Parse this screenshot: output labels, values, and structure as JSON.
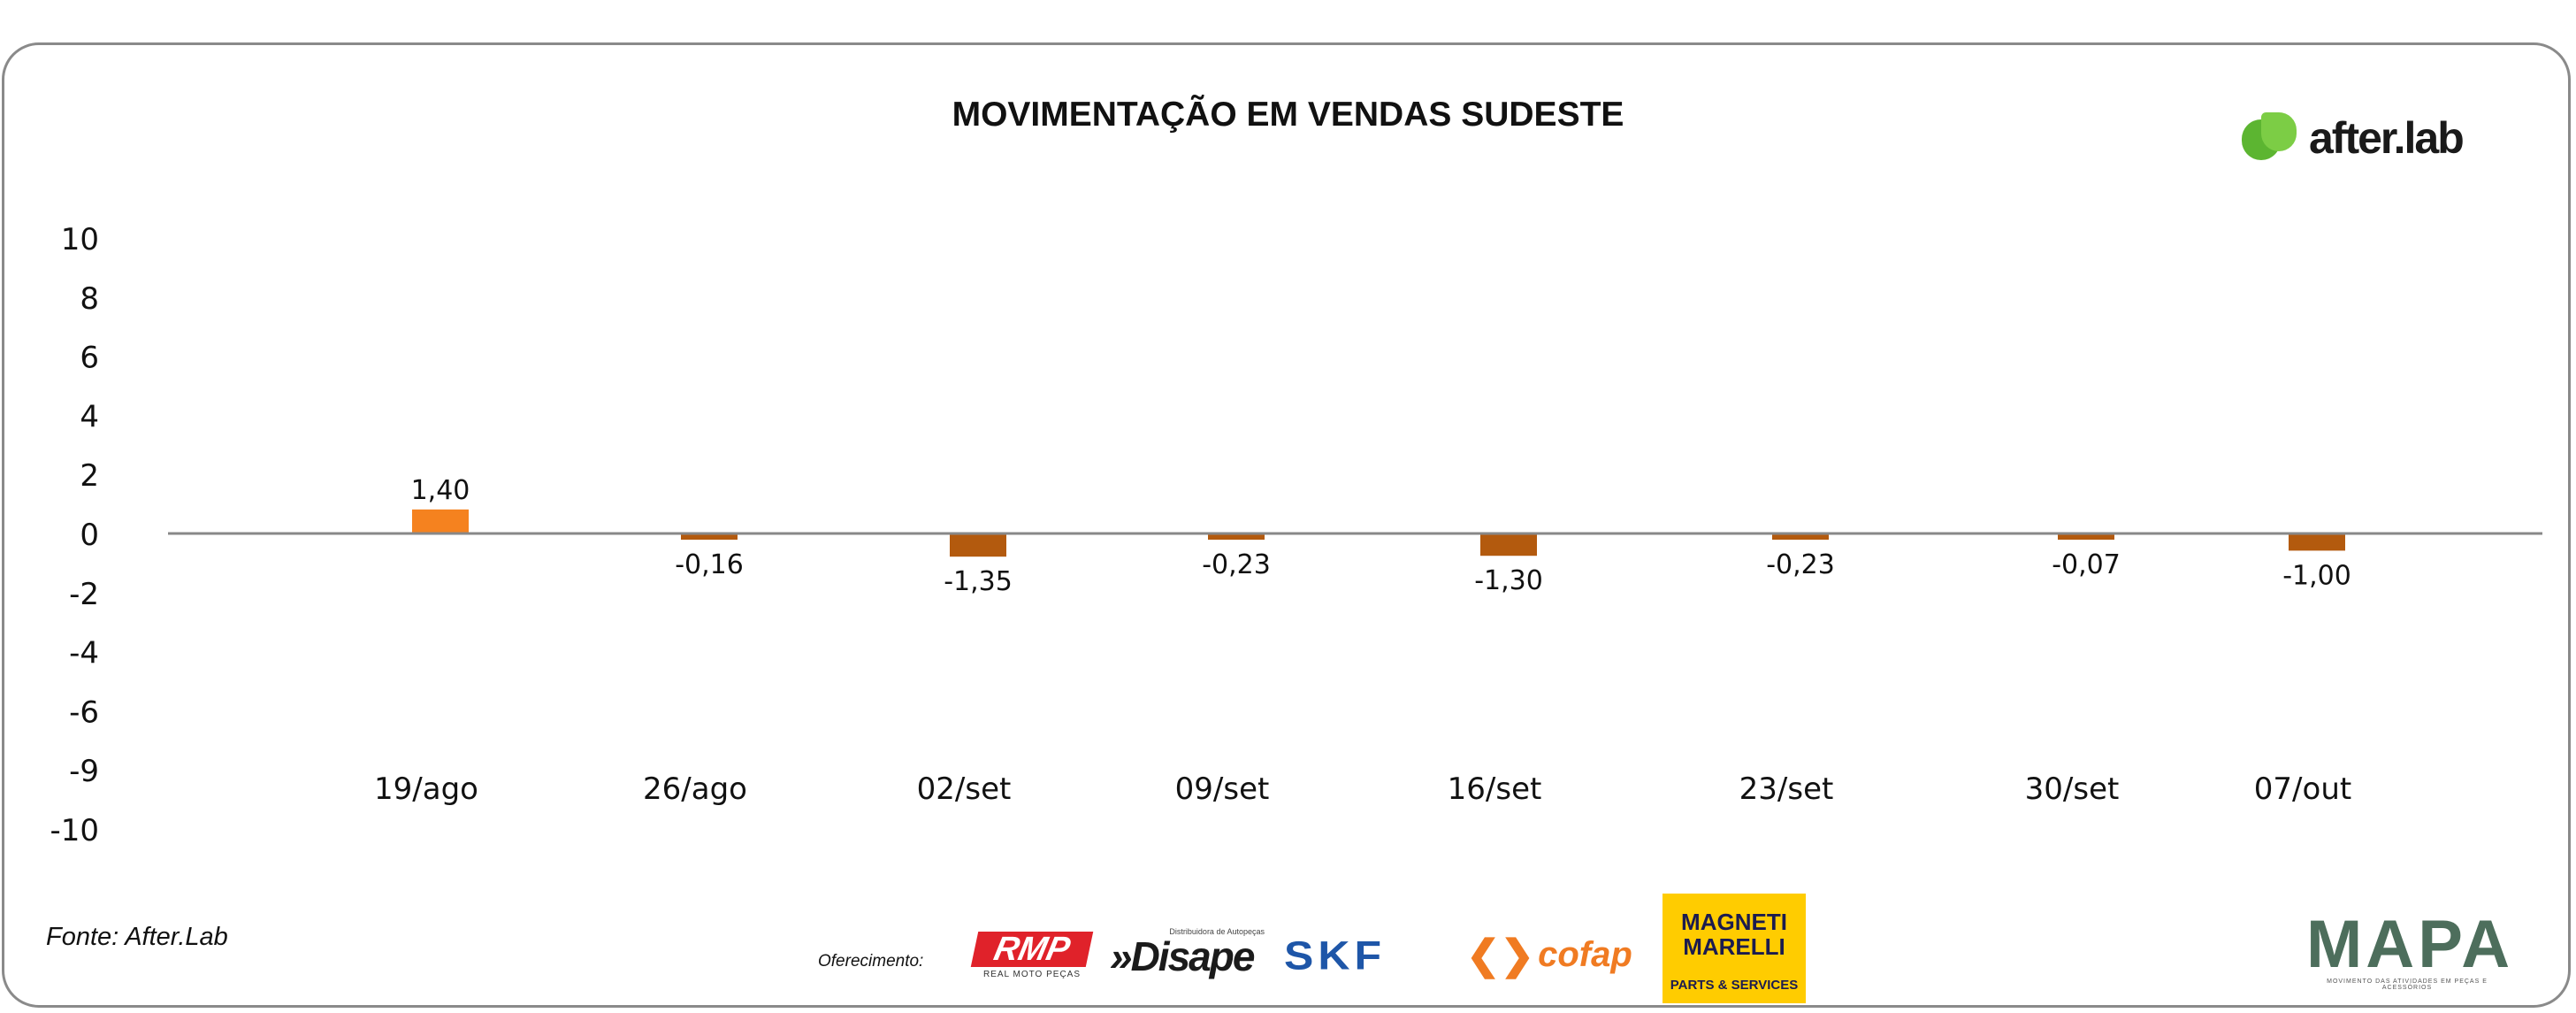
{
  "chart_data": {
    "type": "bar",
    "title": "MOVIMENTAÇÃO EM VENDAS SUDESTE",
    "categories": [
      "19/ago",
      "26/ago",
      "02/set",
      "09/set",
      "16/set",
      "23/set",
      "30/set",
      "07/out"
    ],
    "values": [
      1.4,
      -0.16,
      -1.35,
      -0.23,
      -1.3,
      -0.23,
      -0.07,
      -1.0
    ],
    "value_labels": [
      "1,40",
      "-0,16",
      "-1,35",
      "-0,23",
      "-1,30",
      "-0,23",
      "-0,07",
      "-1,00"
    ],
    "y_ticks": [
      "10",
      "8",
      "6",
      "4",
      "2",
      "0",
      "-2",
      "-4",
      "-6",
      "-9",
      "-10"
    ],
    "ylim": [
      -10,
      10
    ],
    "xlabel": "",
    "ylabel": "",
    "grid": false,
    "colors": {
      "positive": "#f5821f",
      "negative": "#b35a0e",
      "zero_line": "#888888"
    }
  },
  "footer": {
    "source": "Fonte: After.Lab",
    "sponsored_by": "Oferecimento:"
  },
  "logos": {
    "afterlab": "after.lab",
    "rmp": "RMP",
    "rmp_sub": "REAL MOTO PEÇAS",
    "disape_small": "Distribuidora de Autopeças",
    "disape": "»Disape",
    "skf": "SKF",
    "cofap": "cofap",
    "magneti": "MAGNETI MARELLI",
    "magneti_sub": "PARTS & SERVICES",
    "mapa": "MAPA",
    "mapa_sub": "MOVIMENTO DAS ATIVIDADES EM PEÇAS E ACESSÓRIOS"
  }
}
